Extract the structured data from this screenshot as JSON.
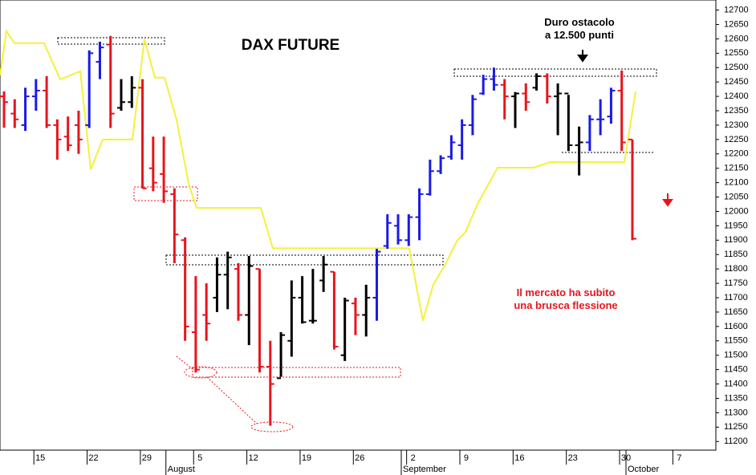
{
  "chart_data": {
    "type": "ohlc",
    "title": "DAX FUTURE",
    "annotations": [
      {
        "lines": [
          "Duro ostacolo",
          "a 12.500 punti"
        ],
        "color": "#000000"
      },
      {
        "lines": [
          "Il mercato ha subito",
          "una brusca flessione"
        ],
        "color": "#e8141c"
      }
    ],
    "bars": {
      "x": [
        0,
        1,
        2,
        3,
        4,
        5,
        6,
        7,
        8,
        9,
        10,
        11,
        12,
        13,
        14,
        15,
        16,
        17,
        18,
        19,
        20,
        21,
        22,
        23,
        24,
        25,
        26,
        27,
        28,
        29,
        30,
        31,
        32,
        33,
        34,
        35,
        36,
        37,
        38,
        39,
        40,
        41,
        42,
        43,
        44,
        45,
        46,
        47,
        48,
        49,
        50,
        51,
        52,
        53,
        54,
        55,
        56,
        57,
        58,
        59
      ],
      "open": [
        12400,
        12340,
        12300,
        12400,
        12420,
        12300,
        12260,
        12300,
        12300,
        12520,
        12580,
        12360,
        12380,
        12430,
        12150,
        12130,
        12060,
        11900,
        11580,
        11640,
        11700,
        11780,
        11800,
        11640,
        11800,
        11460,
        11420,
        11550,
        11700,
        11620,
        11760,
        11790,
        11500,
        11680,
        11640,
        11700,
        11880,
        11950,
        11900,
        11980,
        12060,
        12140,
        12190,
        12230,
        12300,
        12410,
        12460,
        12440,
        12400,
        12410,
        12430,
        12470,
        12400,
        12410,
        12230,
        12240,
        12320,
        12330,
        12420,
        12250
      ],
      "high": [
        12417,
        12390,
        12430,
        12460,
        12470,
        12320,
        12330,
        12350,
        12560,
        12590,
        12610,
        12460,
        12470,
        12460,
        12260,
        12260,
        12080,
        11910,
        11775,
        11750,
        11840,
        11860,
        11820,
        11845,
        11800,
        11550,
        11580,
        11760,
        11775,
        11800,
        11845,
        11790,
        11700,
        11700,
        11745,
        11870,
        11990,
        11990,
        11990,
        12080,
        12180,
        12195,
        12265,
        12320,
        12405,
        12475,
        12500,
        12460,
        12415,
        12445,
        12480,
        12480,
        12445,
        12405,
        12295,
        12335,
        12390,
        12430,
        12490,
        12250
      ],
      "low": [
        12291,
        12290,
        12280,
        12350,
        12290,
        12180,
        12210,
        12200,
        12290,
        12460,
        12290,
        12350,
        12360,
        12080,
        12070,
        12030,
        11820,
        11550,
        11440,
        11550,
        11650,
        11660,
        11620,
        11535,
        11440,
        11255,
        11425,
        11495,
        11610,
        11610,
        11720,
        11520,
        11480,
        11570,
        11565,
        11620,
        11870,
        11885,
        11880,
        11900,
        12055,
        12130,
        12180,
        12180,
        12265,
        12405,
        12420,
        12320,
        12290,
        12350,
        12420,
        12375,
        12265,
        12210,
        12125,
        12210,
        12265,
        12305,
        12210,
        11900
      ],
      "close": [
        12380,
        12320,
        12400,
        12420,
        12300,
        12250,
        12230,
        12250,
        12550,
        12570,
        12340,
        12380,
        12430,
        12080,
        12100,
        12070,
        11920,
        11600,
        11450,
        11610,
        11780,
        11840,
        11640,
        11810,
        11460,
        11400,
        11570,
        11700,
        11615,
        11620,
        11815,
        11530,
        11690,
        11640,
        11700,
        11860,
        11960,
        11900,
        11980,
        12060,
        12140,
        12185,
        12240,
        12300,
        12390,
        12460,
        12440,
        12400,
        12410,
        12380,
        12470,
        12400,
        12410,
        12230,
        12240,
        12320,
        12320,
        12420,
        12240,
        11905
      ],
      "colors": [
        "#e8141c",
        "#e8141c",
        "#1a1ae6",
        "#1a1ae6",
        "#e8141c",
        "#e8141c",
        "#e8141c",
        "#e8141c",
        "#1a1ae6",
        "#1a1ae6",
        "#e8141c",
        "#000000",
        "#000000",
        "#e8141c",
        "#e8141c",
        "#e8141c",
        "#e8141c",
        "#e8141c",
        "#e8141c",
        "#e8141c",
        "#000000",
        "#000000",
        "#e8141c",
        "#000000",
        "#e8141c",
        "#e8141c",
        "#000000",
        "#000000",
        "#000000",
        "#000000",
        "#000000",
        "#e8141c",
        "#000000",
        "#e8141c",
        "#000000",
        "#1a1ae6",
        "#1a1ae6",
        "#1a1ae6",
        "#1a1ae6",
        "#1a1ae6",
        "#1a1ae6",
        "#1a1ae6",
        "#1a1ae6",
        "#1a1ae6",
        "#1a1ae6",
        "#1a1ae6",
        "#1a1ae6",
        "#e8141c",
        "#000000",
        "#e8141c",
        "#000000",
        "#e8141c",
        "#000000",
        "#000000",
        "#000000",
        "#1a1ae6",
        "#1a1ae6",
        "#1a1ae6",
        "#e8141c",
        "#e8141c"
      ]
    },
    "line": {
      "color": "#f5f03c",
      "x": [
        -0.38,
        0.22,
        0.98,
        3.76,
        5.27,
        7.16,
        8.14,
        9.27,
        12.05,
        13.18,
        14.16,
        15.07,
        16.2,
        17.33,
        18.08,
        24.11,
        25.24,
        38.05,
        39.33,
        40.31,
        41.44,
        42.57,
        43.33,
        44.46,
        46.34,
        49.73,
        51.24,
        58.25,
        59.3
      ],
      "values": [
        12473,
        12627,
        12585,
        12585,
        12459,
        12487,
        12146,
        12250,
        12250,
        12599,
        12465,
        12465,
        12319,
        12096,
        12012,
        12012,
        11872,
        11872,
        11620,
        11746,
        11816,
        11900,
        11928,
        12026,
        12152,
        12152,
        12171,
        12171,
        12417
      ]
    },
    "xlim": [
      -0.38,
      66.84
    ],
    "xticks": [
      {
        "value": 2.8,
        "label": "15"
      },
      {
        "value": 7.8,
        "label": "22"
      },
      {
        "value": 12.8,
        "label": "29"
      },
      {
        "value": 17.8,
        "label": "5"
      },
      {
        "value": 22.8,
        "label": "12"
      },
      {
        "value": 27.8,
        "label": "19"
      },
      {
        "value": 32.8,
        "label": "26"
      },
      {
        "value": 37.8,
        "label": "2"
      },
      {
        "value": 42.8,
        "label": "9"
      },
      {
        "value": 47.8,
        "label": "16"
      },
      {
        "value": 52.8,
        "label": "23"
      },
      {
        "value": 57.8,
        "label": "30"
      },
      {
        "value": 62.8,
        "label": "7"
      }
    ],
    "month_ticks": [
      {
        "value": 15.2,
        "label": "August"
      },
      {
        "value": 37.3,
        "label": "September"
      },
      {
        "value": 58.4,
        "label": "October"
      }
    ],
    "ylim": [
      11170,
      12735
    ],
    "yticks": [
      11200,
      11250,
      11300,
      11350,
      11400,
      11450,
      11500,
      11550,
      11600,
      11650,
      11700,
      11750,
      11800,
      11850,
      11900,
      11950,
      12000,
      12050,
      12100,
      12150,
      12200,
      12250,
      12300,
      12350,
      12400,
      12450,
      12500,
      12550,
      12600,
      12650,
      12700
    ]
  }
}
